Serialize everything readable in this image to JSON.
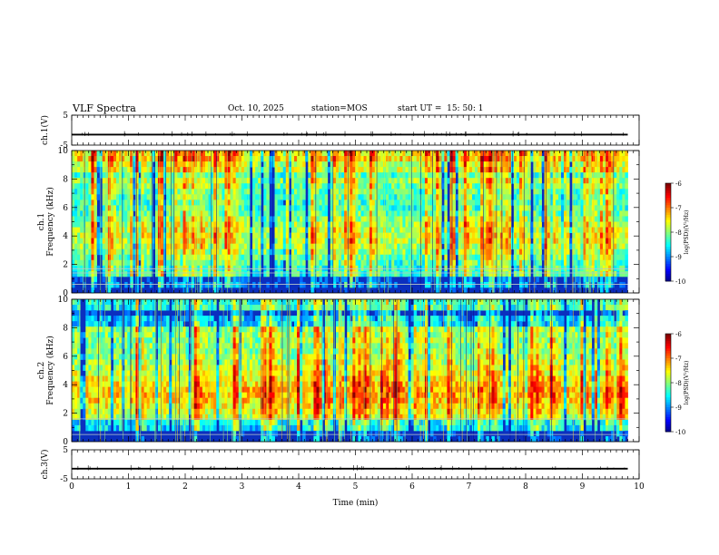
{
  "header": {
    "title": "VLF Spectra",
    "date": "Oct. 10, 2025",
    "station_label": "station=",
    "station": "MOS",
    "start_label": "start  UT  =",
    "start_time": "15: 50: 1"
  },
  "chart_data": [
    {
      "type": "line",
      "ylabel": "ch.1(V)",
      "ylim": [
        -5,
        5
      ],
      "yticks": [
        {
          "v": 5,
          "label": "5"
        },
        {
          "v": -5,
          "label": "-5"
        }
      ],
      "baseline": -1.5,
      "x": [
        0,
        1,
        2,
        3,
        4,
        5,
        6,
        7,
        8,
        9,
        9.8
      ],
      "y": [
        -1.5,
        -1.5,
        -1.5,
        -1.5,
        -1.5,
        -1.5,
        -1.5,
        -1.5,
        -1.5,
        -1.5,
        -1.5
      ]
    },
    {
      "type": "heatmap",
      "ylabel_top": "ch.1",
      "ylabel": "Frequency (kHz)",
      "ylim": [
        0,
        10
      ],
      "yticks": [
        {
          "v": 0,
          "label": "0"
        },
        {
          "v": 2,
          "label": "2"
        },
        {
          "v": 4,
          "label": "4"
        },
        {
          "v": 6,
          "label": "6"
        },
        {
          "v": 8,
          "label": "8"
        },
        {
          "v": 10,
          "label": "10"
        }
      ],
      "xlim": [
        0,
        9.8
      ],
      "colorbar": {
        "label": "log(PSD)(V²/Hz)",
        "range": [
          -10,
          -6
        ],
        "ticks": [
          {
            "v": -6,
            "label": "-6"
          },
          {
            "v": -7,
            "label": "-7"
          },
          {
            "v": -8,
            "label": "-8"
          },
          {
            "v": -9,
            "label": "-9"
          },
          {
            "v": -10,
            "label": "-10"
          }
        ]
      }
    },
    {
      "type": "heatmap",
      "ylabel_top": "ch.2",
      "ylabel": "Frequency (kHz)",
      "ylim": [
        0,
        10
      ],
      "yticks": [
        {
          "v": 0,
          "label": "0"
        },
        {
          "v": 2,
          "label": "2"
        },
        {
          "v": 4,
          "label": "4"
        },
        {
          "v": 6,
          "label": "6"
        },
        {
          "v": 8,
          "label": "8"
        },
        {
          "v": 10,
          "label": "10"
        }
      ],
      "xlim": [
        0,
        9.8
      ],
      "colorbar": {
        "label": "log(PSD)(V²/Hz)",
        "range": [
          -10,
          -6
        ],
        "ticks": [
          {
            "v": -6,
            "label": "-6"
          },
          {
            "v": -7,
            "label": "-7"
          },
          {
            "v": -8,
            "label": "-8"
          },
          {
            "v": -9,
            "label": "-9"
          },
          {
            "v": -10,
            "label": "-10"
          }
        ]
      }
    },
    {
      "type": "line",
      "ylabel": "ch.3(V)",
      "ylim": [
        -5,
        5
      ],
      "yticks": [
        {
          "v": 5,
          "label": "5"
        },
        {
          "v": -5,
          "label": "-5"
        }
      ],
      "baseline": -1.5,
      "x": [
        0,
        1,
        2,
        3,
        4,
        5,
        6,
        7,
        8,
        9,
        9.8
      ],
      "y": [
        -1.5,
        -1.5,
        -1.5,
        -1.5,
        -1.5,
        -1.5,
        -1.5,
        -1.5,
        -1.5,
        -1.5,
        -1.5
      ]
    }
  ],
  "xaxis": {
    "label": "Time (min)",
    "xlim": [
      0,
      10
    ],
    "ticks": [
      {
        "v": 0,
        "label": "0"
      },
      {
        "v": 1,
        "label": "1"
      },
      {
        "v": 2,
        "label": "2"
      },
      {
        "v": 3,
        "label": "3"
      },
      {
        "v": 4,
        "label": "4"
      },
      {
        "v": 5,
        "label": "5"
      },
      {
        "v": 6,
        "label": "6"
      },
      {
        "v": 7,
        "label": "7"
      },
      {
        "v": 8,
        "label": "8"
      },
      {
        "v": 9,
        "label": "9"
      },
      {
        "v": 10,
        "label": "10"
      }
    ]
  }
}
